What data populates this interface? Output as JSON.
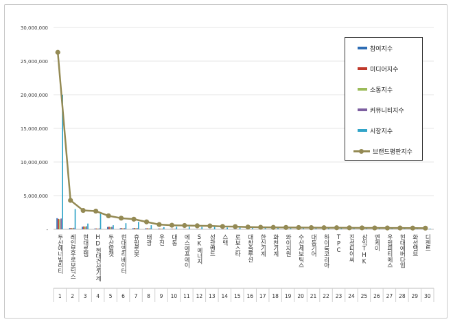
{
  "chart_data": {
    "type": "bar",
    "title": "",
    "xlabel": "",
    "ylabel": "",
    "ylim": [
      0,
      30000000
    ],
    "y_ticks": [
      "30,000,000",
      "25,000,000",
      "20,000,000",
      "15,000,000",
      "10,000,000",
      "5,000,000",
      "-"
    ],
    "legend_position": "top-right",
    "categories": [
      "두산에너빌리티",
      "레인보우로보틱스",
      "현대로템",
      "HD현대건설기계",
      "두산밥캣",
      "현대엘리베이터",
      "휴림로봇",
      "태광",
      "우진",
      "대동",
      "에스에프에이",
      "SK에너지",
      "성광벤드",
      "스맥",
      "로보스타",
      "대창솔루션",
      "한신기계",
      "화천기계",
      "와이지원",
      "수산세보틱스",
      "대동기어",
      "하이록코리아",
      "TPC",
      "진성티이씨",
      "삼익THK",
      "엔케이",
      "우림피티에스",
      "현대에버다임",
      "화성밸브",
      "디젠트"
    ],
    "x_index_labels": [
      "1",
      "2",
      "3",
      "4",
      "5",
      "6",
      "7",
      "8",
      "9",
      "10",
      "11",
      "12",
      "13",
      "14",
      "15",
      "16",
      "17",
      "18",
      "19",
      "20",
      "21",
      "22",
      "23",
      "24",
      "25",
      "26",
      "27",
      "28",
      "29",
      "30"
    ],
    "series": [
      {
        "name": "참여지수",
        "kind": "bar",
        "color": "#2e6db4",
        "values": [
          1650000,
          180000,
          380000,
          120000,
          350000,
          160000,
          170000,
          140000,
          90000,
          60000,
          50000,
          40000,
          30000,
          40000,
          35000,
          25000,
          25000,
          20000,
          20000,
          20000,
          15000,
          15000,
          15000,
          15000,
          15000,
          12000,
          12000,
          12000,
          10000,
          10000
        ]
      },
      {
        "name": "미디어지수",
        "kind": "bar",
        "color": "#c0392b",
        "values": [
          1550000,
          200000,
          420000,
          110000,
          380000,
          180000,
          190000,
          150000,
          90000,
          70000,
          50000,
          45000,
          30000,
          40000,
          35000,
          30000,
          25000,
          20000,
          20000,
          20000,
          15000,
          15000,
          15000,
          15000,
          15000,
          12000,
          12000,
          12000,
          10000,
          10000
        ]
      },
      {
        "name": "소통지수",
        "kind": "bar",
        "color": "#9bbb59",
        "values": [
          1500000,
          170000,
          400000,
          100000,
          330000,
          150000,
          160000,
          130000,
          80000,
          60000,
          40000,
          40000,
          25000,
          35000,
          30000,
          25000,
          20000,
          18000,
          18000,
          18000,
          14000,
          14000,
          14000,
          14000,
          14000,
          11000,
          11000,
          11000,
          9000,
          9000
        ]
      },
      {
        "name": "커뮤니티지수",
        "kind": "bar",
        "color": "#7d5fa0",
        "values": [
          1600000,
          220000,
          450000,
          130000,
          360000,
          170000,
          180000,
          140000,
          85000,
          65000,
          45000,
          42000,
          28000,
          38000,
          33000,
          28000,
          22000,
          19000,
          19000,
          19000,
          14000,
          14000,
          14000,
          14000,
          14000,
          11000,
          11000,
          11000,
          9000,
          9000
        ]
      },
      {
        "name": "시장지수",
        "kind": "bar",
        "color": "#31a4c8",
        "values": [
          20000000,
          3000000,
          850000,
          2300000,
          600000,
          900000,
          1100000,
          600000,
          320000,
          380000,
          380000,
          350000,
          350000,
          260000,
          260000,
          220000,
          200000,
          180000,
          170000,
          170000,
          160000,
          150000,
          150000,
          140000,
          140000,
          130000,
          130000,
          120000,
          110000,
          100000
        ]
      },
      {
        "name": "브랜드평판지수",
        "kind": "line",
        "color": "#948a54",
        "values": [
          26300000,
          4300000,
          2800000,
          2700000,
          2000000,
          1650000,
          1500000,
          1100000,
          700000,
          600000,
          560000,
          520000,
          500000,
          420000,
          400000,
          330000,
          300000,
          280000,
          270000,
          260000,
          240000,
          230000,
          230000,
          220000,
          210000,
          200000,
          195000,
          190000,
          180000,
          170000
        ]
      }
    ]
  }
}
